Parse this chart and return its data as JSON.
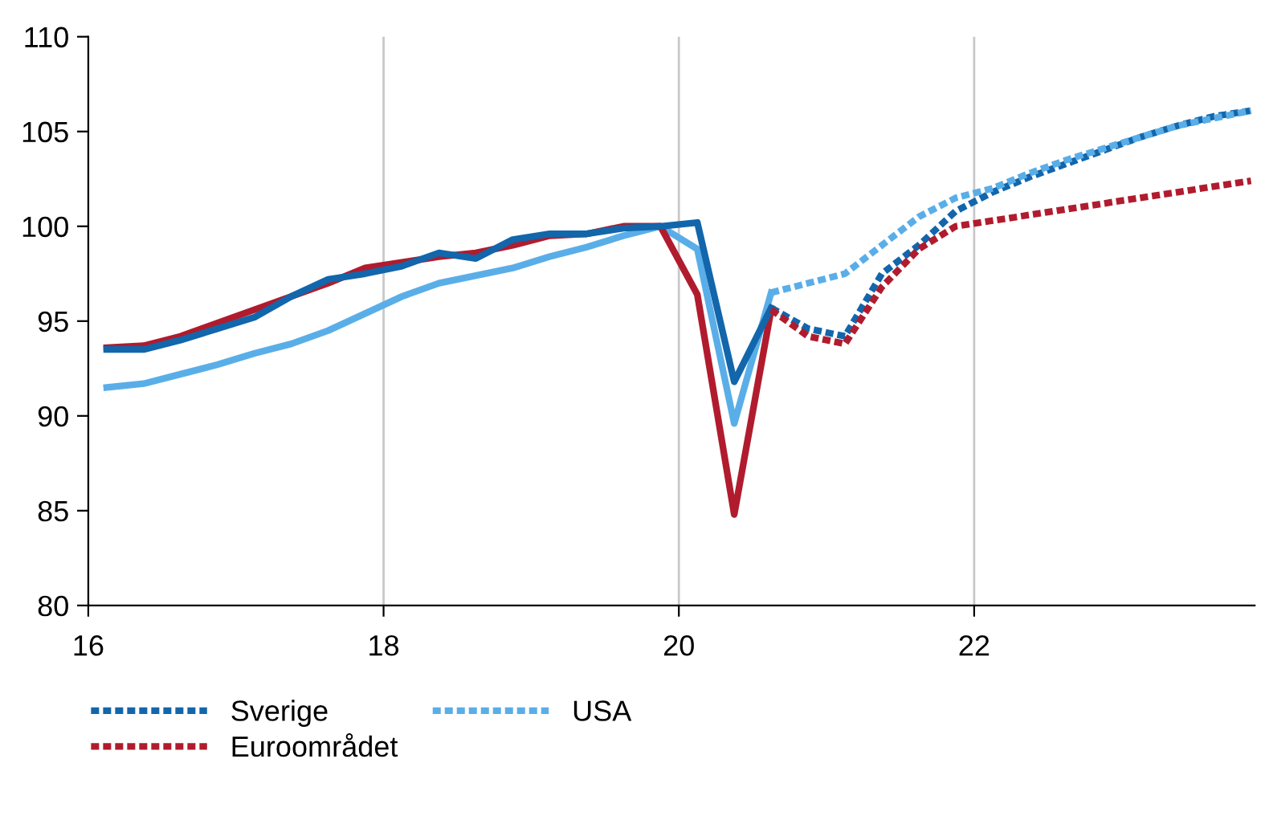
{
  "chart_data": {
    "type": "line",
    "xlim": [
      16,
      23.9
    ],
    "xticks": [
      16,
      18,
      20,
      22
    ],
    "ylim": [
      80,
      110
    ],
    "yticks": [
      80,
      85,
      90,
      95,
      100,
      105,
      110
    ],
    "grid": "x",
    "legend": "bottom",
    "marker": "none",
    "series": [
      {
        "color": "#5aaee8",
        "line_style": "solid",
        "x": [
          16.125,
          16.375,
          16.625,
          16.875,
          17.125,
          17.375,
          17.625,
          17.875,
          18.125,
          18.375,
          18.625,
          18.875,
          19.125,
          19.375,
          19.625,
          19.875,
          20.125,
          20.375,
          20.625
        ],
        "values": [
          91.5,
          91.7,
          92.2,
          92.7,
          93.3,
          93.8,
          94.5,
          95.4,
          96.3,
          97.0,
          97.4,
          97.8,
          98.4,
          98.9,
          99.5,
          100.0,
          98.8,
          89.6,
          96.5
        ]
      },
      {
        "color": "#b01c2e",
        "line_style": "solid",
        "x": [
          16.125,
          16.375,
          16.625,
          16.875,
          17.125,
          17.375,
          17.625,
          17.875,
          18.125,
          18.375,
          18.625,
          18.875,
          19.125,
          19.375,
          19.625,
          19.875,
          20.125,
          20.375,
          20.625
        ],
        "values": [
          93.6,
          93.7,
          94.2,
          94.9,
          95.6,
          96.3,
          97.0,
          97.8,
          98.1,
          98.4,
          98.6,
          99.0,
          99.5,
          99.6,
          100.0,
          100.0,
          96.4,
          84.8,
          95.6
        ]
      },
      {
        "color": "#1266ab",
        "line_style": "solid",
        "x": [
          16.125,
          16.375,
          16.625,
          16.875,
          17.125,
          17.375,
          17.625,
          17.875,
          18.125,
          18.375,
          18.625,
          18.875,
          19.125,
          19.375,
          19.625,
          19.875,
          20.125,
          20.375,
          20.625
        ],
        "values": [
          93.5,
          93.5,
          94.0,
          94.6,
          95.2,
          96.3,
          97.2,
          97.5,
          97.9,
          98.6,
          98.3,
          99.3,
          99.6,
          99.6,
          99.9,
          100.0,
          100.2,
          91.8,
          95.7
        ]
      },
      {
        "name": "Sverige",
        "color": "#1266ab",
        "line_style": "dotted",
        "x": [
          20.625,
          20.875,
          21.125,
          21.375,
          21.625,
          21.875,
          22.125,
          22.375,
          22.625,
          22.875,
          23.125,
          23.375,
          23.625,
          23.875
        ],
        "values": [
          95.7,
          94.6,
          94.2,
          97.5,
          99.0,
          100.8,
          101.8,
          102.6,
          103.3,
          104.0,
          104.7,
          105.3,
          105.8,
          106.1
        ]
      },
      {
        "name": "Euroområdet",
        "color": "#b01c2e",
        "line_style": "dotted",
        "x": [
          20.625,
          20.875,
          21.125,
          21.375,
          21.625,
          21.875,
          22.125,
          22.375,
          22.625,
          22.875,
          23.125,
          23.375,
          23.625,
          23.875
        ],
        "values": [
          95.6,
          94.2,
          93.8,
          96.8,
          98.8,
          100.0,
          100.3,
          100.6,
          100.9,
          101.2,
          101.5,
          101.8,
          102.1,
          102.4
        ]
      },
      {
        "name": "USA",
        "color": "#5aaee8",
        "line_style": "dotted",
        "x": [
          20.625,
          20.875,
          21.125,
          21.375,
          21.625,
          21.875,
          22.125,
          22.375,
          22.625,
          22.875,
          23.125,
          23.375,
          23.625,
          23.875
        ],
        "values": [
          96.5,
          97.0,
          97.5,
          99.0,
          100.5,
          101.5,
          102.0,
          102.8,
          103.5,
          104.1,
          104.7,
          105.3,
          105.7,
          106.1
        ]
      }
    ]
  }
}
